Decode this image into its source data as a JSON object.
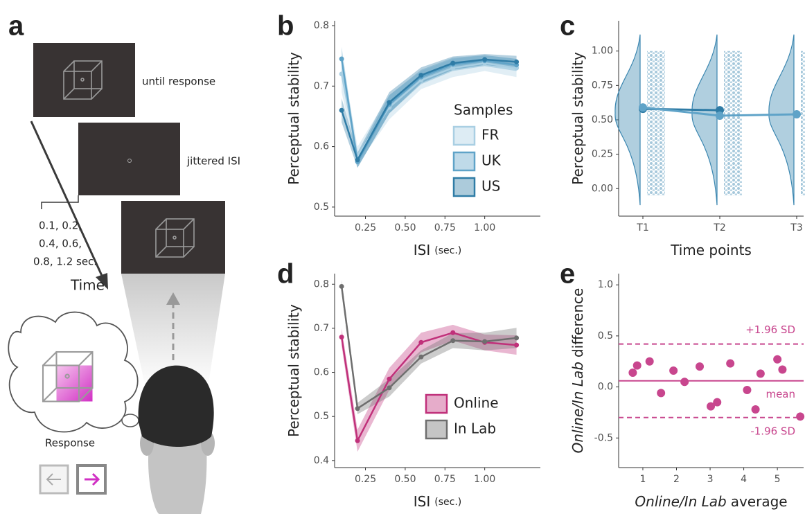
{
  "panel_labels": [
    "a",
    "b",
    "c",
    "d",
    "e"
  ],
  "diagram": {
    "screen1": "until response",
    "screen2": "jittered ISI",
    "isi_values": [
      "0.1, 0.2,",
      "0.4, 0.6,",
      "0.8, 1.2 sec."
    ],
    "time": "Time",
    "response": "Response"
  },
  "chart_data": [
    {
      "type": "line",
      "ylabel": "Perceptual stability",
      "xlabel": "ISI",
      "xlabel_unit": "(sec.)",
      "x": [
        0.1,
        0.2,
        0.4,
        0.6,
        0.8,
        1.0,
        1.2
      ],
      "xlim": [
        0.056,
        1.35
      ],
      "xticks": [
        0.25,
        {
          "value": 0.5,
          "label": "0.50"
        },
        0.75,
        {
          "value": 1,
          "label": "1.00"
        }
      ],
      "ylim": [
        0.485,
        0.808
      ],
      "yticks": [
        0.5,
        0.6,
        0.7,
        0.8
      ],
      "legend": "right",
      "legend_title": "Samples",
      "series": [
        {
          "name": "FR",
          "color": "#a9cfe3",
          "values": [
            0.72,
            0.585,
            0.665,
            0.71,
            0.73,
            0.738,
            0.73
          ],
          "lower": [
            0.69,
            0.57,
            0.645,
            0.695,
            0.715,
            0.725,
            0.715
          ],
          "upper": [
            0.75,
            0.6,
            0.685,
            0.725,
            0.745,
            0.751,
            0.745
          ]
        },
        {
          "name": "UK",
          "color": "#5fa3c8",
          "values": [
            0.745,
            0.575,
            0.67,
            0.715,
            0.736,
            0.742,
            0.735
          ],
          "lower": [
            0.725,
            0.565,
            0.655,
            0.703,
            0.725,
            0.733,
            0.725
          ],
          "upper": [
            0.765,
            0.585,
            0.685,
            0.727,
            0.747,
            0.751,
            0.745
          ]
        },
        {
          "name": "US",
          "color": "#2f7ca6",
          "values": [
            0.66,
            0.578,
            0.673,
            0.718,
            0.738,
            0.744,
            0.74
          ],
          "lower": [
            0.64,
            0.565,
            0.655,
            0.705,
            0.727,
            0.735,
            0.73
          ],
          "upper": [
            0.68,
            0.59,
            0.69,
            0.731,
            0.749,
            0.753,
            0.75
          ]
        }
      ]
    },
    {
      "type": "raincloud",
      "ylabel": "Perceptual stability",
      "xlabel": "Time points",
      "categories": [
        "T1",
        "T2",
        "T3"
      ],
      "color": "#3a86b0",
      "ylim": [
        -0.2,
        1.22
      ],
      "yticks": [
        {
          "value": 0,
          "label": "0.00"
        },
        0.25,
        {
          "value": 0.5,
          "label": "0.50"
        },
        0.75,
        {
          "value": 1,
          "label": "1.00"
        }
      ],
      "series": [
        {
          "color": "#2f7ca6",
          "values": [
            0.58,
            0.57,
            null
          ]
        },
        {
          "color": "#5fa3c8",
          "values": [
            0.59,
            0.53,
            0.54
          ]
        }
      ]
    },
    {
      "type": "line",
      "ylabel": "Perceptual stability",
      "xlabel": "ISI",
      "xlabel_unit": "(sec.)",
      "x": [
        0.1,
        0.2,
        0.4,
        0.6,
        0.8,
        1.0,
        1.2
      ],
      "xlim": [
        0.056,
        1.35
      ],
      "xticks": [
        0.25,
        {
          "value": 0.5,
          "label": "0.50"
        },
        0.75,
        {
          "value": 1,
          "label": "1.00"
        }
      ],
      "ylim": [
        0.384,
        0.824
      ],
      "yticks": [
        0.4,
        0.5,
        0.6,
        0.7,
        0.8
      ],
      "legend": "right",
      "series": [
        {
          "name": "Online",
          "color": "#c0307a",
          "values": [
            0.68,
            0.445,
            0.585,
            0.668,
            0.69,
            0.668,
            0.662
          ],
          "lower": [
            0.66,
            0.42,
            0.56,
            0.645,
            0.672,
            0.65,
            0.64
          ],
          "upper": [
            0.7,
            0.47,
            0.61,
            0.69,
            0.708,
            0.686,
            0.684
          ]
        },
        {
          "name": "In Lab",
          "color": "#6e6e6e",
          "values": [
            0.795,
            0.518,
            0.565,
            0.635,
            0.672,
            0.67,
            0.678
          ],
          "lower": [
            0.78,
            0.505,
            0.545,
            0.62,
            0.655,
            0.65,
            0.655
          ],
          "upper": [
            0.81,
            0.531,
            0.585,
            0.65,
            0.689,
            0.69,
            0.701
          ]
        }
      ]
    },
    {
      "type": "scatter",
      "ylabel_italic": "Online/In Lab",
      "ylabel": "difference",
      "xlabel_italic": "Online/In Lab",
      "xlabel": "average",
      "color": "#c8468e",
      "xlim": [
        0.28,
        5.78
      ],
      "xticks": [
        1,
        2,
        3,
        4,
        5
      ],
      "ylim": [
        -0.79,
        1.11
      ],
      "yticks": [
        -0.5,
        {
          "value": 0,
          "label": "0.0"
        },
        0.5,
        {
          "value": 1,
          "label": "1.0"
        }
      ],
      "x": [
        0.7,
        0.83,
        1.2,
        1.54,
        1.91,
        2.24,
        2.69,
        3.02,
        3.21,
        3.6,
        4.1,
        4.35,
        4.5,
        5.0,
        5.15,
        5.68
      ],
      "values": [
        0.14,
        0.21,
        0.25,
        -0.06,
        0.16,
        0.05,
        0.2,
        -0.19,
        -0.15,
        0.23,
        -0.03,
        -0.22,
        0.13,
        0.27,
        0.17,
        -0.29
      ],
      "hlines": [
        {
          "value": 0.42,
          "label": "+1.96 SD",
          "dashed": true
        },
        {
          "value": 0.06,
          "label": "mean",
          "dashed": false
        },
        {
          "value": -0.3,
          "label": "-1.96 SD",
          "dashed": true
        }
      ]
    }
  ]
}
